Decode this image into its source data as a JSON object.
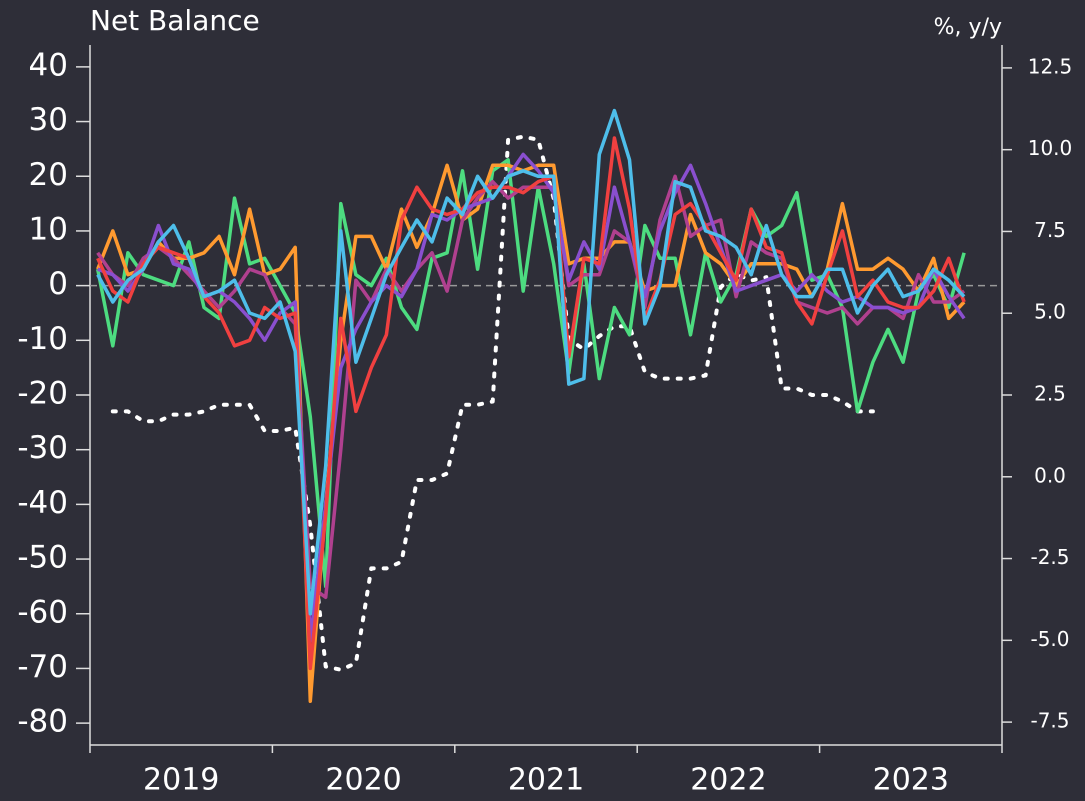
{
  "chart_data": {
    "type": "line",
    "title": "Net Balance",
    "y2_label": "%, y/y",
    "xlim": [
      2019,
      2024
    ],
    "xticks": [
      2019,
      2020,
      2021,
      2022,
      2023,
      2024
    ],
    "year_labels": [
      {
        "value": 2019.5,
        "label": "2019"
      },
      {
        "value": 2020.5,
        "label": "2020"
      },
      {
        "value": 2021.5,
        "label": "2021"
      },
      {
        "value": 2022.5,
        "label": "2022"
      },
      {
        "value": 2023.5,
        "label": "2023"
      }
    ],
    "ylim": [
      -84,
      44
    ],
    "yticks": [
      40,
      30,
      20,
      10,
      0,
      -10,
      -20,
      -30,
      -40,
      -50,
      -60,
      -70,
      -80
    ],
    "y2lim": [
      -8.2,
      13.2
    ],
    "y2ticks": [
      12.5,
      {
        "value": 10,
        "label": "10.0"
      },
      7.5,
      {
        "value": 5,
        "label": "5.0"
      },
      2.5,
      {
        "value": 0,
        "label": "0.0"
      },
      -2.5,
      {
        "value": -5,
        "label": "-5.0"
      },
      -7.5
    ],
    "zero_line": true,
    "x": [
      2019.042,
      2019.125,
      2019.208,
      2019.292,
      2019.375,
      2019.458,
      2019.542,
      2019.625,
      2019.708,
      2019.792,
      2019.875,
      2019.958,
      2020.042,
      2020.125,
      2020.208,
      2020.292,
      2020.375,
      2020.458,
      2020.542,
      2020.625,
      2020.708,
      2020.792,
      2020.875,
      2020.958,
      2021.042,
      2021.125,
      2021.208,
      2021.292,
      2021.375,
      2021.458,
      2021.542,
      2021.625,
      2021.708,
      2021.792,
      2021.875,
      2021.958,
      2022.042,
      2022.125,
      2022.208,
      2022.292,
      2022.375,
      2022.458,
      2022.542,
      2022.625,
      2022.708,
      2022.792,
      2022.875,
      2022.958,
      2023.042,
      2023.125,
      2023.208,
      2023.292,
      2023.375,
      2023.458,
      2023.542,
      2023.625,
      2023.708,
      2023.792
    ],
    "series": [
      {
        "color": "#4ebeea",
        "values": [
          2,
          -3,
          1,
          3,
          8,
          11,
          5,
          -2,
          -1,
          1,
          -5,
          -6,
          -3,
          -12,
          -60,
          -33,
          10,
          -14,
          -6,
          2,
          7,
          12,
          8,
          16,
          13,
          20,
          16,
          20,
          21,
          20,
          20,
          -18,
          -17,
          24,
          32,
          23,
          -7,
          0,
          19,
          18,
          10,
          9,
          7,
          2,
          11,
          2,
          -2,
          -2,
          3,
          3,
          -5,
          0,
          3,
          -2,
          -1,
          3,
          1,
          -2
        ]
      },
      {
        "color": "#f04040",
        "values": [
          5,
          -1,
          -3,
          4,
          7,
          6,
          5,
          -2,
          -5,
          -11,
          -10,
          -4,
          -6,
          -5,
          -70,
          -42,
          -6,
          -23,
          -15,
          -9,
          12,
          18,
          14,
          13,
          14,
          17,
          18,
          18,
          17,
          19,
          20,
          -13,
          5,
          4,
          27,
          14,
          -6,
          1,
          13,
          15,
          11,
          6,
          1,
          14,
          7,
          6,
          -3,
          -7,
          2,
          10,
          -2,
          1,
          -3,
          -4,
          -4,
          -1,
          5,
          -3
        ]
      },
      {
        "color": "#8a4fcf",
        "values": [
          3,
          2,
          -1,
          3,
          11,
          4,
          3,
          -2,
          -1,
          -3,
          -6,
          -10,
          -5,
          -3,
          -65,
          -40,
          -15,
          -8,
          -3,
          0,
          -2,
          3,
          13,
          12,
          14,
          15,
          16,
          20,
          24,
          21,
          17,
          1,
          8,
          3,
          18,
          8,
          -2,
          10,
          17,
          22,
          15,
          7,
          -1,
          0,
          1,
          2,
          -1,
          2,
          -1,
          -3,
          -2,
          -4,
          -4,
          -5,
          -4,
          3,
          -2,
          -6
        ]
      },
      {
        "color": "#b0408f",
        "values": [
          6,
          2,
          0,
          5,
          7,
          5,
          2,
          -1,
          -4,
          -1,
          3,
          2,
          -4,
          -7,
          -55,
          -57,
          -30,
          1,
          -3,
          3,
          -1,
          3,
          6,
          -1,
          12,
          16,
          19,
          16,
          18,
          18,
          18,
          0,
          2,
          2,
          10,
          8,
          -4,
          12,
          20,
          9,
          11,
          12,
          -2,
          8,
          6,
          5,
          -3,
          -4,
          -5,
          -4,
          -7,
          -4,
          -4,
          -6,
          2,
          -3,
          -3,
          -1
        ]
      },
      {
        "color": "#ff9a30",
        "values": [
          3,
          10,
          2,
          3,
          8,
          5,
          5,
          6,
          9,
          2,
          14,
          2,
          3,
          7,
          -76,
          -40,
          -10,
          9,
          9,
          3,
          14,
          7,
          13,
          22,
          12,
          14,
          22,
          22,
          21,
          22,
          22,
          4,
          5,
          5,
          8,
          8,
          -1,
          0,
          0,
          13,
          6,
          4,
          0,
          4,
          4,
          4,
          3,
          -2,
          3,
          15,
          3,
          3,
          5,
          3,
          -1,
          5,
          -6,
          -3
        ]
      },
      {
        "color": "#4ddc80",
        "values": [
          3,
          -11,
          6,
          2,
          1,
          0,
          8,
          -4,
          -6,
          16,
          4,
          5,
          0,
          -5,
          -24,
          -55,
          15,
          2,
          0,
          5,
          -4,
          -8,
          5,
          6,
          21,
          3,
          21,
          23,
          -1,
          18,
          4,
          -16,
          4,
          -17,
          -4,
          -9,
          11,
          5,
          5,
          -9,
          6,
          -3,
          2,
          14,
          9,
          11,
          17,
          1,
          2,
          -4,
          -23,
          -14,
          -8,
          -14,
          -1,
          2,
          -4,
          6
        ]
      },
      {
        "color": "#ffffff",
        "axis": "y2",
        "dotted": true,
        "values": [
          null,
          2.0,
          2.0,
          1.7,
          1.7,
          1.9,
          1.9,
          2.0,
          2.2,
          2.2,
          2.2,
          1.4,
          1.4,
          1.5,
          -1.5,
          -5.8,
          -5.9,
          -5.7,
          -2.8,
          -2.8,
          -2.6,
          -0.1,
          -0.1,
          0.1,
          2.2,
          2.2,
          2.3,
          10.3,
          10.4,
          10.3,
          8.5,
          4.2,
          3.9,
          4.3,
          4.6,
          4.6,
          3.2,
          3.0,
          3.0,
          3.0,
          3.1,
          5.8,
          6.2,
          6.0,
          6.1,
          2.7,
          2.7,
          2.5,
          2.5,
          2.3,
          2.0,
          2.0,
          null,
          null,
          null,
          null,
          null,
          null
        ]
      }
    ]
  }
}
